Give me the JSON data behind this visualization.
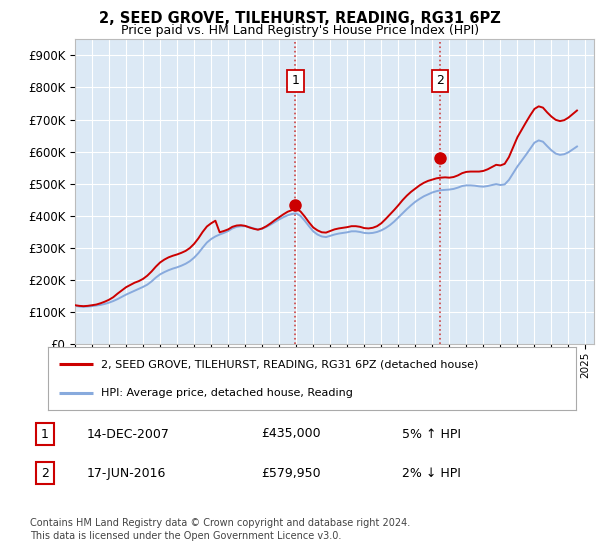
{
  "title": "2, SEED GROVE, TILEHURST, READING, RG31 6PZ",
  "subtitle": "Price paid vs. HM Land Registry's House Price Index (HPI)",
  "ylabel_ticks": [
    "£0",
    "£100K",
    "£200K",
    "£300K",
    "£400K",
    "£500K",
    "£600K",
    "£700K",
    "£800K",
    "£900K"
  ],
  "ytick_values": [
    0,
    100000,
    200000,
    300000,
    400000,
    500000,
    600000,
    700000,
    800000,
    900000
  ],
  "ylim": [
    0,
    950000
  ],
  "xlim_start": 1995.0,
  "xlim_end": 2025.5,
  "background_color": "#dce9f5",
  "plot_bg_color": "#dce9f5",
  "grid_color": "#ffffff",
  "sale1_year": 2007.95,
  "sale1_price": 435000,
  "sale2_year": 2016.46,
  "sale2_price": 579950,
  "sale1_label": "1",
  "sale2_label": "2",
  "sale1_date": "14-DEC-2007",
  "sale2_date": "17-JUN-2016",
  "sale1_hpi": "5% ↑ HPI",
  "sale2_hpi": "2% ↓ HPI",
  "sale1_price_str": "£435,000",
  "sale2_price_str": "£579,950",
  "legend_house": "2, SEED GROVE, TILEHURST, READING, RG31 6PZ (detached house)",
  "legend_hpi": "HPI: Average price, detached house, Reading",
  "footnote": "Contains HM Land Registry data © Crown copyright and database right 2024.\nThis data is licensed under the Open Government Licence v3.0.",
  "line_color_house": "#cc0000",
  "line_color_hpi": "#88aadd",
  "dashed_line_color": "#cc0000",
  "hpi_data_x": [
    1995.0,
    1995.25,
    1995.5,
    1995.75,
    1996.0,
    1996.25,
    1996.5,
    1996.75,
    1997.0,
    1997.25,
    1997.5,
    1997.75,
    1998.0,
    1998.25,
    1998.5,
    1998.75,
    1999.0,
    1999.25,
    1999.5,
    1999.75,
    2000.0,
    2000.25,
    2000.5,
    2000.75,
    2001.0,
    2001.25,
    2001.5,
    2001.75,
    2002.0,
    2002.25,
    2002.5,
    2002.75,
    2003.0,
    2003.25,
    2003.5,
    2003.75,
    2004.0,
    2004.25,
    2004.5,
    2004.75,
    2005.0,
    2005.25,
    2005.5,
    2005.75,
    2006.0,
    2006.25,
    2006.5,
    2006.75,
    2007.0,
    2007.25,
    2007.5,
    2007.75,
    2008.0,
    2008.25,
    2008.5,
    2008.75,
    2009.0,
    2009.25,
    2009.5,
    2009.75,
    2010.0,
    2010.25,
    2010.5,
    2010.75,
    2011.0,
    2011.25,
    2011.5,
    2011.75,
    2012.0,
    2012.25,
    2012.5,
    2012.75,
    2013.0,
    2013.25,
    2013.5,
    2013.75,
    2014.0,
    2014.25,
    2014.5,
    2014.75,
    2015.0,
    2015.25,
    2015.5,
    2015.75,
    2016.0,
    2016.25,
    2016.5,
    2016.75,
    2017.0,
    2017.25,
    2017.5,
    2017.75,
    2018.0,
    2018.25,
    2018.5,
    2018.75,
    2019.0,
    2019.25,
    2019.5,
    2019.75,
    2020.0,
    2020.25,
    2020.5,
    2020.75,
    2021.0,
    2021.25,
    2021.5,
    2021.75,
    2022.0,
    2022.25,
    2022.5,
    2022.75,
    2023.0,
    2023.25,
    2023.5,
    2023.75,
    2024.0,
    2024.25,
    2024.5
  ],
  "hpi_data_y": [
    120000,
    118000,
    117000,
    118000,
    119000,
    121000,
    123000,
    126000,
    130000,
    135000,
    141000,
    148000,
    155000,
    161000,
    167000,
    173000,
    179000,
    186000,
    196000,
    208000,
    218000,
    225000,
    231000,
    236000,
    240000,
    245000,
    251000,
    259000,
    270000,
    284000,
    301000,
    317000,
    328000,
    336000,
    342000,
    347000,
    353000,
    361000,
    366000,
    368000,
    368000,
    365000,
    361000,
    358000,
    360000,
    366000,
    373000,
    381000,
    389000,
    396000,
    402000,
    406000,
    408000,
    400000,
    385000,
    368000,
    352000,
    342000,
    336000,
    334000,
    338000,
    342000,
    345000,
    347000,
    349000,
    352000,
    352000,
    350000,
    347000,
    346000,
    347000,
    350000,
    355000,
    362000,
    371000,
    382000,
    395000,
    408000,
    421000,
    433000,
    444000,
    453000,
    461000,
    467000,
    473000,
    477000,
    480000,
    481000,
    482000,
    484000,
    488000,
    493000,
    495000,
    495000,
    494000,
    492000,
    491000,
    493000,
    496000,
    499000,
    496000,
    498000,
    512000,
    533000,
    554000,
    572000,
    590000,
    609000,
    628000,
    635000,
    631000,
    617000,
    604000,
    594000,
    590000,
    592000,
    598000,
    607000,
    616000
  ],
  "house_data_x": [
    1995.0,
    1995.25,
    1995.5,
    1995.75,
    1996.0,
    1996.25,
    1996.5,
    1996.75,
    1997.0,
    1997.25,
    1997.5,
    1997.75,
    1998.0,
    1998.25,
    1998.5,
    1998.75,
    1999.0,
    1999.25,
    1999.5,
    1999.75,
    2000.0,
    2000.25,
    2000.5,
    2000.75,
    2001.0,
    2001.25,
    2001.5,
    2001.75,
    2002.0,
    2002.25,
    2002.5,
    2002.75,
    2003.0,
    2003.25,
    2003.5,
    2003.75,
    2004.0,
    2004.25,
    2004.5,
    2004.75,
    2005.0,
    2005.25,
    2005.5,
    2005.75,
    2006.0,
    2006.25,
    2006.5,
    2006.75,
    2007.0,
    2007.25,
    2007.5,
    2007.75,
    2008.0,
    2008.25,
    2008.5,
    2008.75,
    2009.0,
    2009.25,
    2009.5,
    2009.75,
    2010.0,
    2010.25,
    2010.5,
    2010.75,
    2011.0,
    2011.25,
    2011.5,
    2011.75,
    2012.0,
    2012.25,
    2012.5,
    2012.75,
    2013.0,
    2013.25,
    2013.5,
    2013.75,
    2014.0,
    2014.25,
    2014.5,
    2014.75,
    2015.0,
    2015.25,
    2015.5,
    2015.75,
    2016.0,
    2016.25,
    2016.5,
    2016.75,
    2017.0,
    2017.25,
    2017.5,
    2017.75,
    2018.0,
    2018.25,
    2018.5,
    2018.75,
    2019.0,
    2019.25,
    2019.5,
    2019.75,
    2020.0,
    2020.25,
    2020.5,
    2020.75,
    2021.0,
    2021.25,
    2021.5,
    2021.75,
    2022.0,
    2022.25,
    2022.5,
    2022.75,
    2023.0,
    2023.25,
    2023.5,
    2023.75,
    2024.0,
    2024.25,
    2024.5
  ],
  "house_data_y": [
    122000,
    120000,
    119000,
    120000,
    122000,
    124000,
    128000,
    133000,
    139000,
    147000,
    158000,
    168000,
    178000,
    185000,
    192000,
    197000,
    204000,
    214000,
    227000,
    242000,
    255000,
    264000,
    271000,
    276000,
    280000,
    285000,
    291000,
    300000,
    313000,
    330000,
    350000,
    367000,
    377000,
    385000,
    349000,
    353000,
    358000,
    366000,
    370000,
    371000,
    369000,
    364000,
    360000,
    357000,
    361000,
    368000,
    377000,
    387000,
    396000,
    405000,
    413000,
    418000,
    422000,
    414000,
    398000,
    380000,
    364000,
    355000,
    349000,
    348000,
    353000,
    358000,
    361000,
    363000,
    365000,
    368000,
    368000,
    366000,
    362000,
    361000,
    363000,
    368000,
    377000,
    390000,
    404000,
    418000,
    433000,
    449000,
    463000,
    475000,
    485000,
    495000,
    503000,
    509000,
    513000,
    517000,
    519000,
    520000,
    519000,
    521000,
    526000,
    533000,
    537000,
    538000,
    538000,
    538000,
    540000,
    545000,
    552000,
    559000,
    557000,
    562000,
    583000,
    614000,
    645000,
    668000,
    691000,
    713000,
    733000,
    741000,
    737000,
    722000,
    709000,
    699000,
    695000,
    698000,
    706000,
    717000,
    728000
  ]
}
